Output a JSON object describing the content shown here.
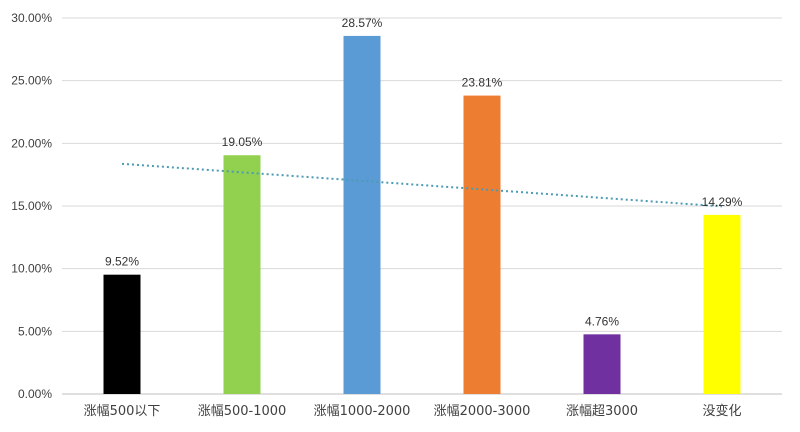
{
  "chart_data": {
    "type": "bar",
    "categories": [
      "涨幅500以下",
      "涨幅500-1000",
      "涨幅1000-2000",
      "涨幅2000-3000",
      "涨幅超3000",
      "没变化"
    ],
    "values": [
      9.52,
      19.05,
      28.57,
      23.81,
      4.76,
      14.29
    ],
    "data_labels": [
      "9.52%",
      "19.05%",
      "28.57%",
      "23.81%",
      "4.76%",
      "14.29%"
    ],
    "colors": [
      "#000000",
      "#92d050",
      "#5b9bd5",
      "#ed7d31",
      "#7030a0",
      "#ffff00"
    ],
    "y_ticks": [
      0,
      5,
      10,
      15,
      20,
      25,
      30
    ],
    "y_tick_labels": [
      "0.00%",
      "5.00%",
      "10.00%",
      "15.00%",
      "20.00%",
      "25.00%",
      "30.00%"
    ],
    "ylim": [
      0,
      30
    ],
    "grid": true,
    "legend": "none",
    "trendline": {
      "type": "linear",
      "style": "dotted",
      "color": "#4a9bb3"
    }
  }
}
